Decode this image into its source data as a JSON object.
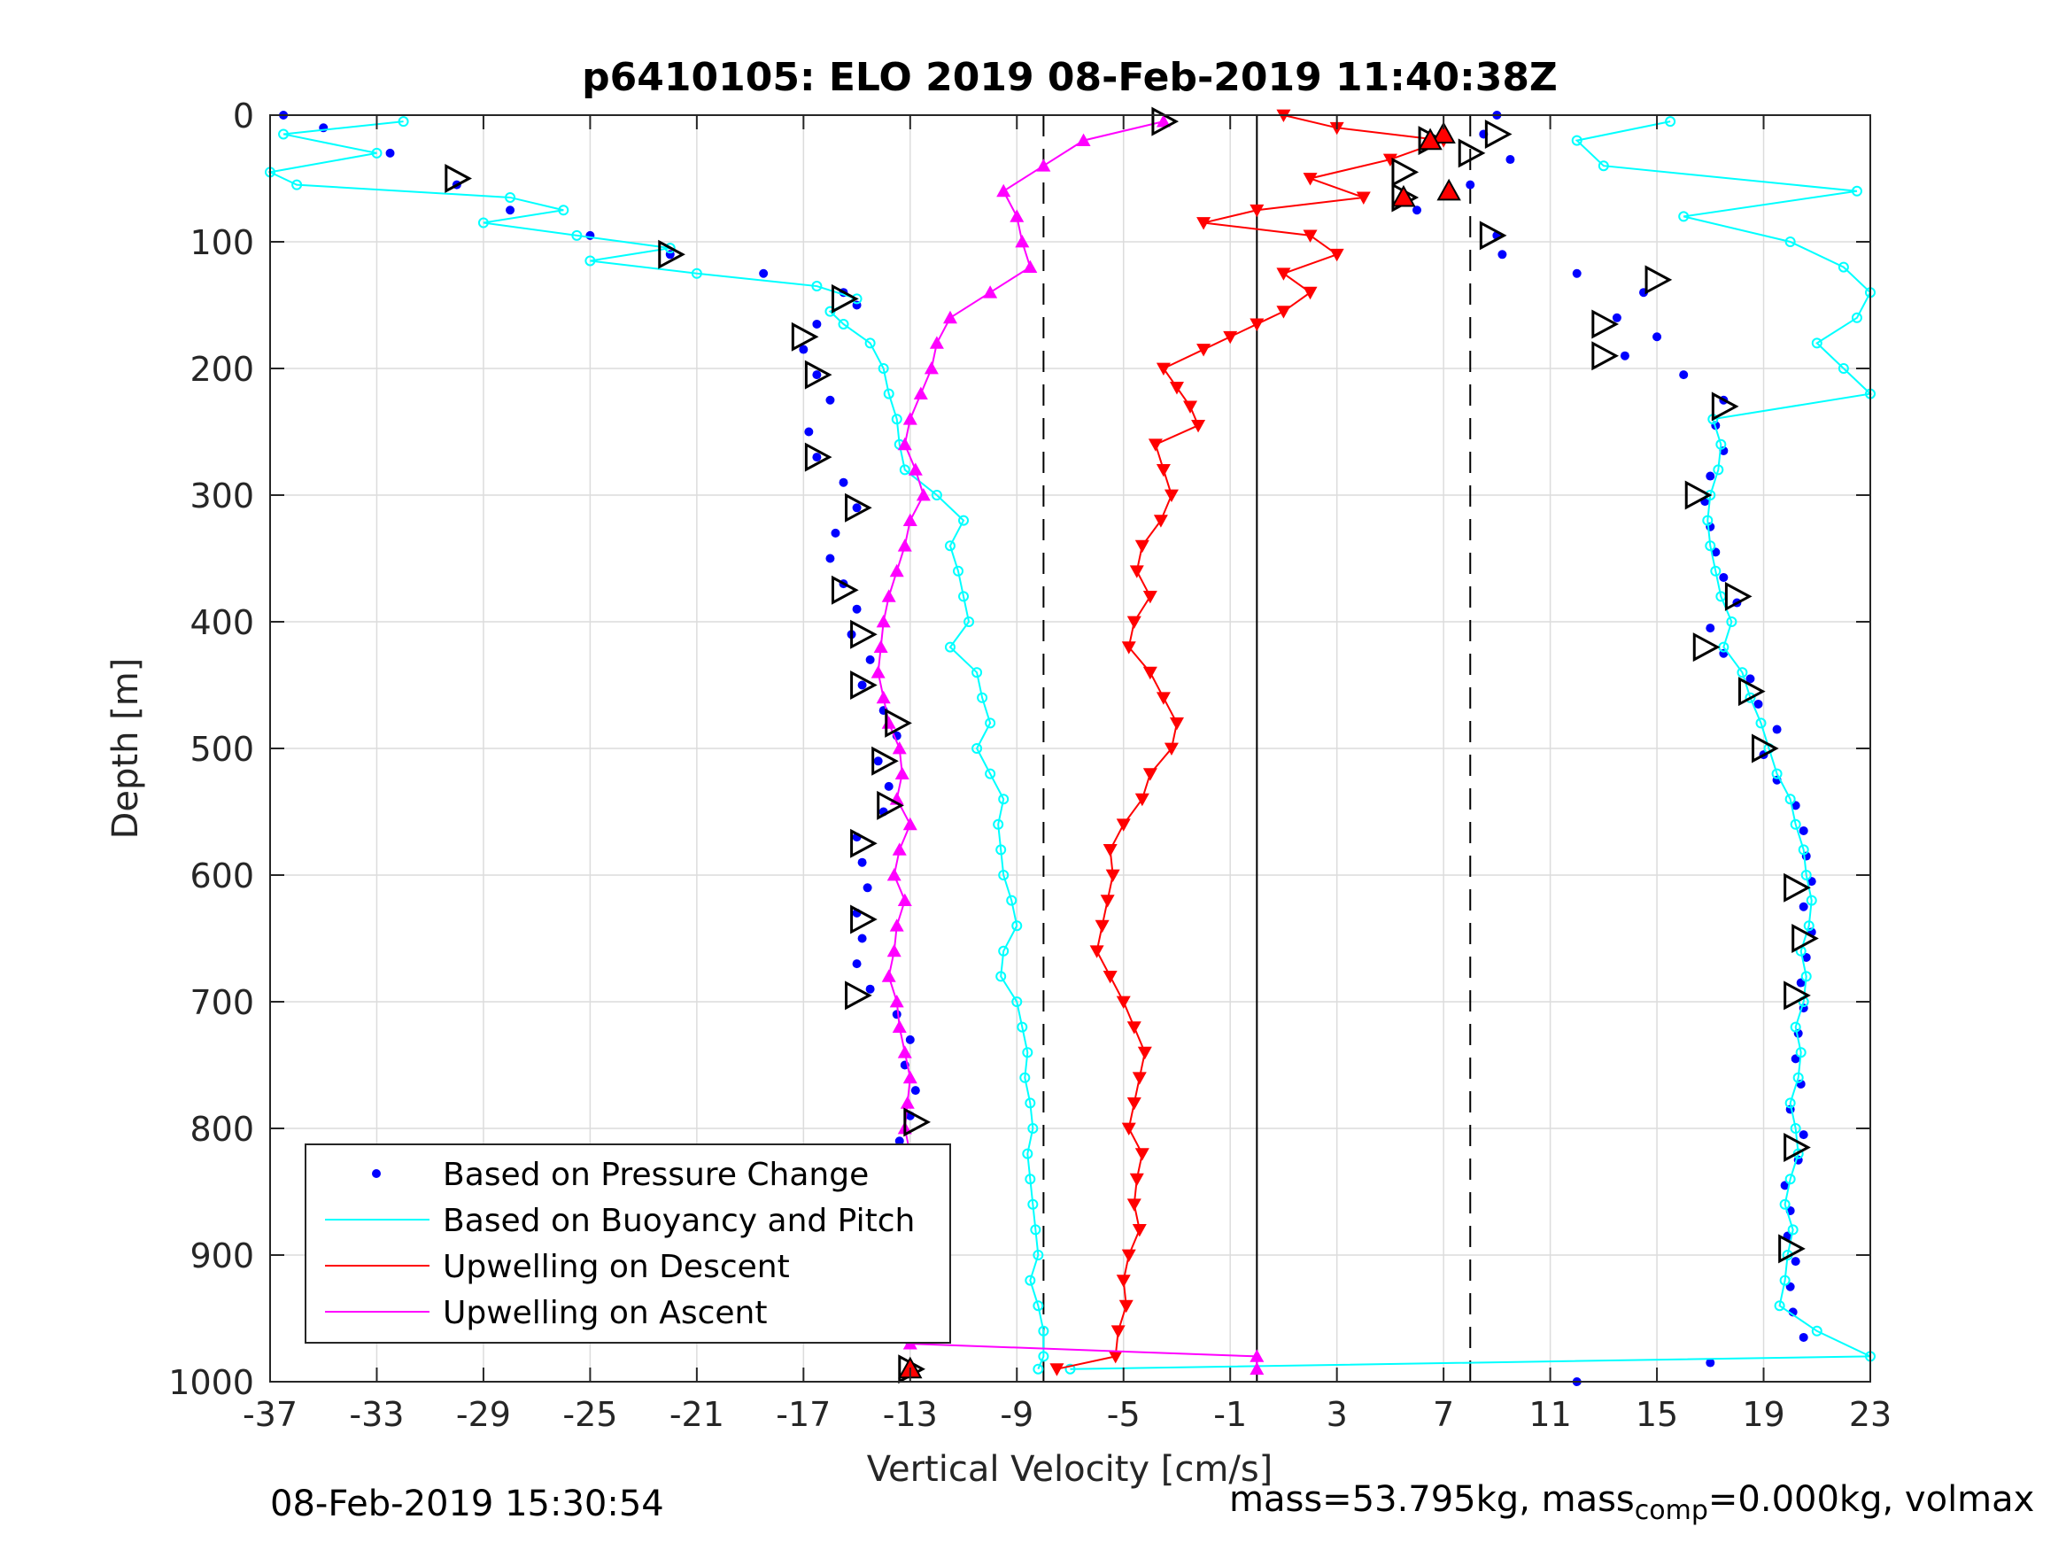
{
  "chart_data": {
    "type": "scatter",
    "title": "p6410105: ELO 2019 08-Feb-2019 11:40:38Z",
    "xlabel": "Vertical Velocity [cm/s]",
    "ylabel": "Depth [m]",
    "xlim": [
      -37,
      23
    ],
    "ylim": [
      0,
      1000
    ],
    "y_reversed": true,
    "grid": true,
    "xticks": [
      -37,
      -33,
      -29,
      -25,
      -21,
      -17,
      -13,
      -9,
      -5,
      -1,
      3,
      7,
      11,
      15,
      19,
      23
    ],
    "yticks": [
      0,
      100,
      200,
      300,
      400,
      500,
      600,
      700,
      800,
      900,
      1000
    ],
    "xtick_labels": [
      "-37",
      "-33",
      "-29",
      "-25",
      "-21",
      "-17",
      "-13",
      "-9",
      "-5",
      "-1",
      "3",
      "7",
      "11",
      "15",
      "19",
      "23"
    ],
    "ytick_labels": [
      "0",
      "100",
      "200",
      "300",
      "400",
      "500",
      "600",
      "700",
      "800",
      "900",
      "1000"
    ],
    "legend_position": "bottom-left",
    "reference_lines": [
      {
        "x": -8,
        "style": "dashed"
      },
      {
        "x": 0,
        "style": "solid"
      },
      {
        "x": 8,
        "style": "dashed"
      }
    ],
    "series": [
      {
        "name": "Based on Pressure Change",
        "color": "#0000ff",
        "marker": "dot",
        "segments": [
          {
            "depth": [
              0,
              10,
              30,
              55,
              75,
              95,
              110,
              125,
              140,
              150,
              165,
              185,
              205,
              225,
              250,
              270,
              290,
              310,
              330,
              350,
              370,
              390,
              410,
              430,
              450,
              470,
              490,
              510,
              530,
              550,
              570,
              590,
              610,
              630,
              650,
              670,
              690,
              710,
              730,
              750,
              770,
              790,
              810,
              830,
              850,
              870,
              890,
              910,
              930,
              950,
              970,
              990
            ],
            "velocity": [
              -36.5,
              -35,
              -32.5,
              -30,
              -28,
              -25,
              -22,
              -18.5,
              -15.5,
              -15,
              -16.5,
              -17,
              -16.5,
              -16,
              -16.8,
              -16.5,
              -15.5,
              -15,
              -15.8,
              -16,
              -15.5,
              -15,
              -15.2,
              -14.5,
              -14.8,
              -14,
              -13.5,
              -14.2,
              -13.8,
              -14,
              -15,
              -14.8,
              -14.6,
              -15,
              -14.8,
              -15,
              -14.5,
              -13.5,
              -13,
              -13.2,
              -12.8,
              -13,
              -13.4,
              -13.5,
              -13.2,
              -13.3,
              -13,
              -13.1,
              -13,
              -12.8,
              -13,
              -13
            ]
          },
          {
            "depth": [
              0,
              15,
              35,
              55,
              75,
              95,
              110,
              125,
              140,
              160,
              175,
              190,
              205,
              225,
              245,
              265,
              285,
              305,
              325,
              345,
              365,
              385,
              405,
              425,
              445,
              465,
              485,
              505,
              525,
              545,
              565,
              585,
              605,
              625,
              645,
              665,
              685,
              705,
              725,
              745,
              765,
              785,
              805,
              825,
              845,
              865,
              885,
              905,
              925,
              945,
              965,
              985,
              1000
            ],
            "velocity": [
              9,
              8.5,
              9.5,
              8,
              6,
              9,
              9.2,
              12,
              14.5,
              13.5,
              15,
              13.8,
              16,
              17.5,
              17.2,
              17.5,
              17,
              16.8,
              17,
              17.2,
              17.5,
              18,
              17,
              17.5,
              18.5,
              18.8,
              19.5,
              19,
              19.5,
              20.2,
              20.5,
              20.6,
              20.8,
              20.5,
              20.8,
              20.6,
              20.4,
              20.5,
              20.3,
              20.2,
              20.4,
              20,
              20.5,
              20.3,
              19.8,
              20,
              19.9,
              20.2,
              20,
              20.1,
              20.5,
              17,
              12
            ]
          }
        ]
      },
      {
        "name": "Based on Buoyancy and Pitch",
        "color": "#00ffff",
        "marker": "circle-line",
        "segments": [
          {
            "depth": [
              5,
              15,
              30,
              45,
              55,
              65,
              75,
              85,
              95,
              105,
              115,
              125,
              135,
              145,
              155,
              165,
              180,
              200,
              220,
              240,
              260,
              280,
              300,
              320,
              340,
              360,
              380,
              400,
              420,
              440,
              460,
              480,
              500,
              520,
              540,
              560,
              580,
              600,
              620,
              640,
              660,
              680,
              700,
              720,
              740,
              760,
              780,
              800,
              820,
              840,
              860,
              880,
              900,
              920,
              940,
              960,
              980,
              990
            ],
            "velocity": [
              -32,
              -36.5,
              -33,
              -37,
              -36,
              -28,
              -26,
              -29,
              -25.5,
              -22,
              -25,
              -21,
              -16.5,
              -15,
              -16,
              -15.5,
              -14.5,
              -14,
              -13.8,
              -13.5,
              -13.4,
              -13.2,
              -12,
              -11,
              -11.5,
              -11.2,
              -11,
              -10.8,
              -11.5,
              -10.5,
              -10.3,
              -10,
              -10.5,
              -10,
              -9.5,
              -9.7,
              -9.6,
              -9.5,
              -9.2,
              -9,
              -9.5,
              -9.6,
              -9,
              -8.8,
              -8.6,
              -8.7,
              -8.5,
              -8.4,
              -8.6,
              -8.5,
              -8.4,
              -8.3,
              -8.2,
              -8.5,
              -8.2,
              -8,
              -8,
              -8.2
            ]
          },
          {
            "depth": [
              990,
              980,
              960,
              940,
              920,
              900,
              880,
              860,
              840,
              820,
              800,
              780,
              760,
              740,
              720,
              700,
              680,
              660,
              640,
              620,
              600,
              580,
              560,
              540,
              520,
              500,
              480,
              460,
              440,
              420,
              400,
              380,
              360,
              340,
              320,
              300,
              280,
              260,
              240,
              220,
              200,
              180,
              160,
              140,
              120,
              100,
              80,
              60,
              40,
              20,
              5
            ],
            "velocity": [
              -7,
              23,
              21,
              19.6,
              19.8,
              19.9,
              20.1,
              19.8,
              20,
              20.3,
              20.2,
              20,
              20.3,
              20.4,
              20.2,
              20.5,
              20.6,
              20.4,
              20.7,
              20.8,
              20.6,
              20.5,
              20.2,
              20,
              19.5,
              19.2,
              18.9,
              18.5,
              18.2,
              17.5,
              17.8,
              17.4,
              17.2,
              17,
              16.9,
              17,
              17.3,
              17.4,
              17.1,
              23,
              22,
              21,
              22.5,
              23,
              22,
              20,
              16,
              22.5,
              13,
              12,
              15.5
            ]
          }
        ]
      },
      {
        "name": "Upwelling on Descent",
        "color": "#ff0000",
        "marker": "triangle-down",
        "segments": [
          {
            "depth": [
              0,
              10,
              20,
              35,
              50,
              65,
              75,
              85,
              95,
              110,
              125,
              140,
              155,
              165,
              175,
              185,
              200,
              215,
              230,
              245,
              260,
              280,
              300,
              320,
              340,
              360,
              380,
              400,
              420,
              440,
              460,
              480,
              500,
              520,
              540,
              560,
              580,
              600,
              620,
              640,
              660,
              680,
              700,
              720,
              740,
              760,
              780,
              800,
              820,
              840,
              860,
              880,
              900,
              920,
              940,
              960,
              980,
              990
            ],
            "velocity": [
              1,
              3,
              7,
              5,
              2,
              4,
              0,
              -2,
              2,
              3,
              1,
              2,
              1,
              0,
              -1,
              -2,
              -3.5,
              -3,
              -2.5,
              -2.2,
              -3.8,
              -3.5,
              -3.2,
              -3.6,
              -4.3,
              -4.5,
              -4,
              -4.6,
              -4.8,
              -4,
              -3.5,
              -3,
              -3.2,
              -4,
              -4.3,
              -5,
              -5.5,
              -5.4,
              -5.6,
              -5.8,
              -6,
              -5.5,
              -5,
              -4.6,
              -4.2,
              -4.4,
              -4.6,
              -4.8,
              -4.3,
              -4.5,
              -4.6,
              -4.4,
              -4.8,
              -5,
              -4.9,
              -5.2,
              -5.3,
              -7.5
            ]
          }
        ]
      },
      {
        "name": "Upwelling on Ascent",
        "color": "#ff00ff",
        "marker": "triangle-up",
        "segments": [
          {
            "depth": [
              990,
              980,
              970,
              960,
              940,
              920,
              900,
              880,
              860,
              840,
              820,
              800,
              780,
              760,
              740,
              720,
              700,
              680,
              660,
              640,
              620,
              600,
              580,
              560,
              540,
              520,
              500,
              480,
              460,
              440,
              420,
              400,
              380,
              360,
              340,
              320,
              300,
              280,
              260,
              240,
              220,
              200,
              180,
              160,
              140,
              120,
              100,
              80,
              60,
              40,
              20,
              5
            ],
            "velocity": [
              0,
              0,
              -13,
              -13.6,
              -13.4,
              -13.8,
              -14.2,
              -13.5,
              -13.8,
              -13.4,
              -13,
              -13.2,
              -13.1,
              -13,
              -13.2,
              -13.4,
              -13.5,
              -13.8,
              -13.6,
              -13.5,
              -13.2,
              -13.6,
              -13.4,
              -13,
              -13.5,
              -13.3,
              -13.4,
              -13.8,
              -14,
              -14.2,
              -14.1,
              -14,
              -13.8,
              -13.5,
              -13.2,
              -13,
              -12.5,
              -12.8,
              -13.2,
              -13,
              -12.6,
              -12.2,
              -12,
              -11.5,
              -10,
              -8.5,
              -8.8,
              -9,
              -9.5,
              -8,
              -6.5,
              -3.5
            ]
          }
        ]
      }
    ],
    "black_markers_pressure": {
      "depth": [
        5,
        15,
        30,
        50,
        110,
        145,
        175,
        205,
        270,
        310,
        375,
        410,
        450,
        480,
        510,
        545,
        575,
        635,
        695,
        795,
        895,
        990,
        20,
        45,
        65,
        95,
        130,
        165,
        190,
        230,
        300,
        380,
        420,
        455,
        500,
        610,
        650,
        695,
        815,
        895
      ],
      "velocity": [
        -3.5,
        9,
        8,
        -30,
        -22,
        -15.5,
        -17,
        -16.5,
        -16.5,
        -15,
        -15.5,
        -14.8,
        -14.8,
        -13.5,
        -14,
        -13.8,
        -14.8,
        -14.8,
        -15,
        -12.8,
        -13,
        -13,
        6.5,
        5.5,
        5.5,
        8.8,
        15,
        13,
        13,
        17.5,
        16.5,
        18,
        16.8,
        18.5,
        19,
        20.2,
        20.5,
        20.2,
        20.2,
        20
      ]
    },
    "black_markers_descent_triangles": {
      "depth": [
        15,
        20,
        60,
        65,
        990
      ],
      "velocity": [
        7,
        6.5,
        7.2,
        5.5,
        -13
      ]
    }
  },
  "legend": {
    "items": [
      {
        "label": "Based on Pressure Change",
        "color": "#0000ff"
      },
      {
        "label": "Based on Buoyancy and Pitch",
        "color": "#00ffff"
      },
      {
        "label": "Upwelling on Descent",
        "color": "#ff0000"
      },
      {
        "label": "Upwelling on Ascent",
        "color": "#ff00ff"
      }
    ]
  },
  "footer": {
    "timestamp": "08-Feb-2019 15:30:54",
    "mass_text": "mass=53.795kg, mass",
    "mass_sub": "comp",
    "mass_tail": "=0.000kg, volmax"
  }
}
